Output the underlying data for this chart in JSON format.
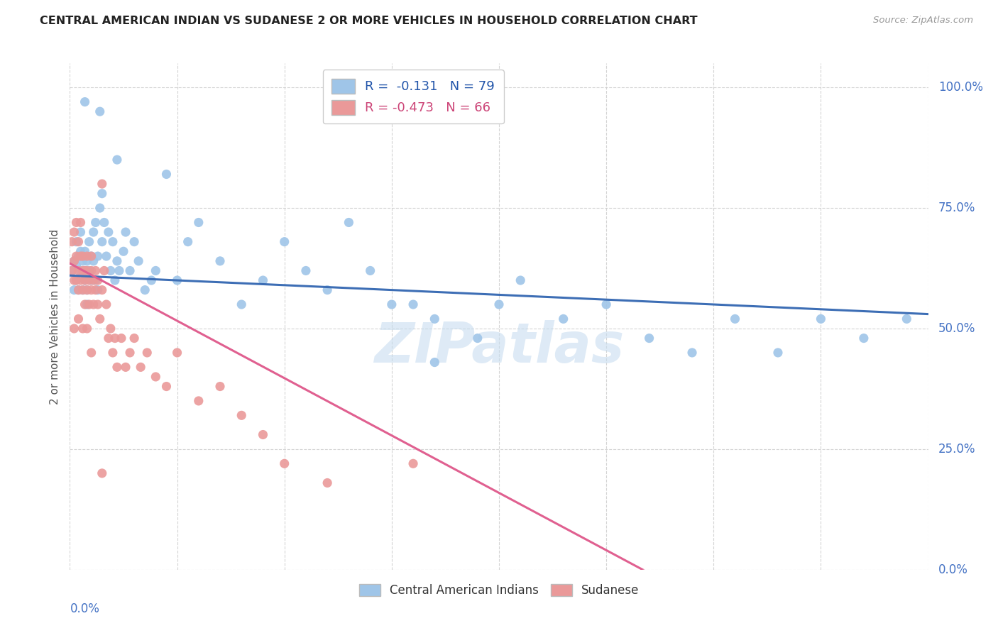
{
  "title": "CENTRAL AMERICAN INDIAN VS SUDANESE 2 OR MORE VEHICLES IN HOUSEHOLD CORRELATION CHART",
  "source": "Source: ZipAtlas.com",
  "ylabel": "2 or more Vehicles in Household",
  "legend_blue": "Central American Indians",
  "legend_pink": "Sudanese",
  "r_blue": -0.131,
  "n_blue": 79,
  "r_pink": -0.473,
  "n_pink": 66,
  "blue_color": "#9fc5e8",
  "pink_color": "#ea9999",
  "trend_blue_color": "#3d6eb5",
  "trend_pink_color": "#e06090",
  "trend_pink_dash_color": "#e8a0b8",
  "watermark_color": "#c8ddf0",
  "xlim": [
    0.0,
    0.4
  ],
  "ylim": [
    0.0,
    1.05
  ],
  "ytick_vals": [
    0.0,
    0.25,
    0.5,
    0.75,
    1.0
  ],
  "ytick_labels": [
    "0.0%",
    "25.0%",
    "50.0%",
    "75.0%",
    "100.0%"
  ],
  "blue_points_x": [
    0.001,
    0.002,
    0.002,
    0.003,
    0.003,
    0.003,
    0.004,
    0.004,
    0.005,
    0.005,
    0.005,
    0.006,
    0.006,
    0.007,
    0.007,
    0.007,
    0.008,
    0.008,
    0.008,
    0.009,
    0.009,
    0.01,
    0.01,
    0.011,
    0.011,
    0.012,
    0.012,
    0.013,
    0.013,
    0.014,
    0.015,
    0.015,
    0.016,
    0.017,
    0.018,
    0.019,
    0.02,
    0.021,
    0.022,
    0.023,
    0.025,
    0.026,
    0.028,
    0.03,
    0.032,
    0.035,
    0.038,
    0.04,
    0.045,
    0.05,
    0.055,
    0.06,
    0.07,
    0.08,
    0.09,
    0.1,
    0.11,
    0.12,
    0.13,
    0.14,
    0.15,
    0.16,
    0.17,
    0.19,
    0.2,
    0.21,
    0.23,
    0.25,
    0.27,
    0.29,
    0.31,
    0.33,
    0.35,
    0.37,
    0.39,
    0.007,
    0.014,
    0.022,
    0.17
  ],
  "blue_points_y": [
    0.62,
    0.58,
    0.64,
    0.6,
    0.63,
    0.68,
    0.65,
    0.58,
    0.62,
    0.66,
    0.7,
    0.64,
    0.58,
    0.62,
    0.66,
    0.6,
    0.64,
    0.58,
    0.55,
    0.62,
    0.68,
    0.65,
    0.6,
    0.7,
    0.64,
    0.72,
    0.6,
    0.65,
    0.58,
    0.75,
    0.78,
    0.68,
    0.72,
    0.65,
    0.7,
    0.62,
    0.68,
    0.6,
    0.64,
    0.62,
    0.66,
    0.7,
    0.62,
    0.68,
    0.64,
    0.58,
    0.6,
    0.62,
    0.82,
    0.6,
    0.68,
    0.72,
    0.64,
    0.55,
    0.6,
    0.68,
    0.62,
    0.58,
    0.72,
    0.62,
    0.55,
    0.55,
    0.52,
    0.48,
    0.55,
    0.6,
    0.52,
    0.55,
    0.48,
    0.45,
    0.52,
    0.45,
    0.52,
    0.48,
    0.52,
    0.97,
    0.95,
    0.85,
    0.43
  ],
  "pink_points_x": [
    0.001,
    0.001,
    0.002,
    0.002,
    0.002,
    0.003,
    0.003,
    0.003,
    0.004,
    0.004,
    0.004,
    0.005,
    0.005,
    0.005,
    0.006,
    0.006,
    0.006,
    0.007,
    0.007,
    0.007,
    0.008,
    0.008,
    0.008,
    0.009,
    0.009,
    0.01,
    0.01,
    0.01,
    0.011,
    0.011,
    0.012,
    0.012,
    0.013,
    0.013,
    0.014,
    0.015,
    0.015,
    0.016,
    0.017,
    0.018,
    0.019,
    0.02,
    0.021,
    0.022,
    0.024,
    0.026,
    0.028,
    0.03,
    0.033,
    0.036,
    0.04,
    0.045,
    0.05,
    0.06,
    0.07,
    0.08,
    0.09,
    0.1,
    0.12,
    0.16,
    0.002,
    0.004,
    0.006,
    0.008,
    0.01,
    0.015
  ],
  "pink_points_y": [
    0.62,
    0.68,
    0.64,
    0.6,
    0.7,
    0.72,
    0.65,
    0.6,
    0.68,
    0.62,
    0.58,
    0.65,
    0.6,
    0.72,
    0.62,
    0.58,
    0.65,
    0.6,
    0.55,
    0.62,
    0.65,
    0.58,
    0.62,
    0.6,
    0.55,
    0.65,
    0.58,
    0.62,
    0.6,
    0.55,
    0.62,
    0.58,
    0.55,
    0.6,
    0.52,
    0.8,
    0.58,
    0.62,
    0.55,
    0.48,
    0.5,
    0.45,
    0.48,
    0.42,
    0.48,
    0.42,
    0.45,
    0.48,
    0.42,
    0.45,
    0.4,
    0.38,
    0.45,
    0.35,
    0.38,
    0.32,
    0.28,
    0.22,
    0.18,
    0.22,
    0.5,
    0.52,
    0.5,
    0.5,
    0.45,
    0.2
  ],
  "background_color": "#ffffff",
  "grid_color": "#d0d0d0"
}
